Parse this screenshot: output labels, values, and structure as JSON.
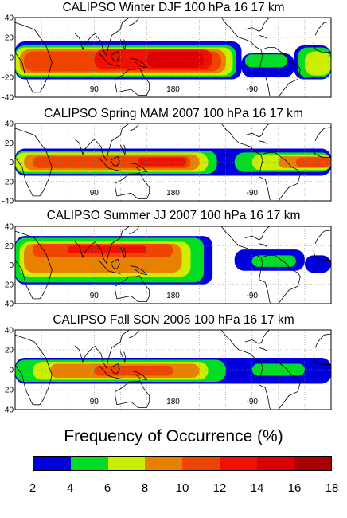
{
  "chart_data": [
    {
      "type": "heatmap",
      "title": "CALIPSO Winter DJF 100 hPa 16 17 km",
      "y_ticks": [
        "40",
        "20",
        "0",
        "-20",
        "-40"
      ],
      "x_ticks": [
        "90",
        "180",
        "-90"
      ],
      "ylim": [
        -40,
        40
      ],
      "xlim": [
        0,
        360
      ],
      "bands": [
        {
          "level": 2,
          "segments": [
            [
              0,
              258,
              -22,
              16
            ],
            [
              258,
              318,
              -20,
              4
            ],
            [
              318,
              360,
              -22,
              12
            ]
          ]
        },
        {
          "level": 4,
          "segments": [
            [
              0,
              252,
              -20,
              12
            ],
            [
              262,
              310,
              -10,
              3
            ],
            [
              322,
              360,
              -20,
              10
            ]
          ]
        },
        {
          "level": 6,
          "segments": [
            [
              0,
              248,
              -18,
              10
            ],
            [
              330,
              360,
              -18,
              6
            ]
          ]
        },
        {
          "level": 8,
          "segments": [
            [
              5,
              240,
              -16,
              8
            ]
          ]
        },
        {
          "level": 10,
          "segments": [
            [
              10,
              235,
              -14,
              6
            ]
          ]
        },
        {
          "level": 12,
          "segments": [
            [
              90,
              225,
              -12,
              8
            ]
          ]
        },
        {
          "level": 14,
          "segments": [
            [
              150,
              215,
              -10,
              6
            ]
          ]
        }
      ]
    },
    {
      "type": "heatmap",
      "title": "CALIPSO Spring MAM 2007 100 hPa 16 17 km",
      "y_ticks": [
        "40",
        "20",
        "0",
        "-20",
        "-40"
      ],
      "x_ticks": [
        "90",
        "180",
        "-90"
      ],
      "ylim": [
        -40,
        40
      ],
      "xlim": [
        0,
        360
      ],
      "bands": [
        {
          "level": 2,
          "segments": [
            [
              0,
              360,
              -14,
              14
            ]
          ]
        },
        {
          "level": 4,
          "segments": [
            [
              0,
              230,
              -12,
              12
            ],
            [
              250,
              360,
              -10,
              10
            ]
          ]
        },
        {
          "level": 6,
          "segments": [
            [
              0,
              220,
              -10,
              10
            ],
            [
              270,
              360,
              -8,
              8
            ]
          ]
        },
        {
          "level": 8,
          "segments": [
            [
              10,
              210,
              -8,
              8
            ],
            [
              300,
              360,
              -6,
              6
            ]
          ]
        },
        {
          "level": 10,
          "segments": [
            [
              20,
              200,
              -6,
              6
            ],
            [
              320,
              360,
              -5,
              5
            ]
          ]
        },
        {
          "level": 12,
          "segments": [
            [
              140,
              195,
              -4,
              5
            ]
          ]
        }
      ]
    },
    {
      "type": "heatmap",
      "title": "CALIPSO Summer JJ 2007 100 hPa 16 17 km",
      "y_ticks": [
        "40",
        "20",
        "0",
        "-20",
        "-40"
      ],
      "x_ticks": [
        "90",
        "180",
        "-90"
      ],
      "ylim": [
        -40,
        40
      ],
      "xlim": [
        0,
        360
      ],
      "bands": [
        {
          "level": 2,
          "segments": [
            [
              0,
              225,
              -20,
              30
            ],
            [
              250,
              330,
              -6,
              16
            ],
            [
              330,
              360,
              -8,
              10
            ]
          ]
        },
        {
          "level": 4,
          "segments": [
            [
              0,
              215,
              -18,
              28
            ],
            [
              270,
              320,
              -2,
              10
            ]
          ]
        },
        {
          "level": 6,
          "segments": [
            [
              5,
              200,
              -12,
              24
            ]
          ]
        },
        {
          "level": 8,
          "segments": [
            [
              10,
              190,
              -8,
              22
            ]
          ]
        },
        {
          "level": 10,
          "segments": [
            [
              20,
              180,
              8,
              22
            ]
          ]
        },
        {
          "level": 12,
          "segments": [
            [
              60,
              150,
              12,
              20
            ]
          ]
        }
      ]
    },
    {
      "type": "heatmap",
      "title": "CALIPSO Fall SON 2006 100 hPa 16 17 km",
      "y_ticks": [
        "40",
        "20",
        "0",
        "-20",
        "-40"
      ],
      "x_ticks": [
        "90",
        "180",
        "-90"
      ],
      "ylim": [
        -40,
        40
      ],
      "xlim": [
        0,
        360
      ],
      "bands": [
        {
          "level": 2,
          "segments": [
            [
              0,
              360,
              -14,
              12
            ]
          ]
        },
        {
          "level": 4,
          "segments": [
            [
              0,
              240,
              -12,
              10
            ],
            [
              270,
              330,
              -6,
              6
            ]
          ]
        },
        {
          "level": 6,
          "segments": [
            [
              20,
              220,
              -10,
              8
            ]
          ]
        },
        {
          "level": 8,
          "segments": [
            [
              40,
              210,
              -8,
              6
            ]
          ]
        },
        {
          "level": 10,
          "segments": [
            [
              90,
              180,
              -6,
              4
            ]
          ]
        }
      ]
    }
  ],
  "legend": {
    "title": "Frequency of Occurrence (%)",
    "ticks": [
      "2",
      "4",
      "6",
      "8",
      "10",
      "12",
      "14",
      "16",
      "18"
    ],
    "colors": [
      "#0000dd",
      "#00dd22",
      "#ccee00",
      "#e88000",
      "#ee4400",
      "#ee1100",
      "#dd0000",
      "#aa0000"
    ]
  }
}
